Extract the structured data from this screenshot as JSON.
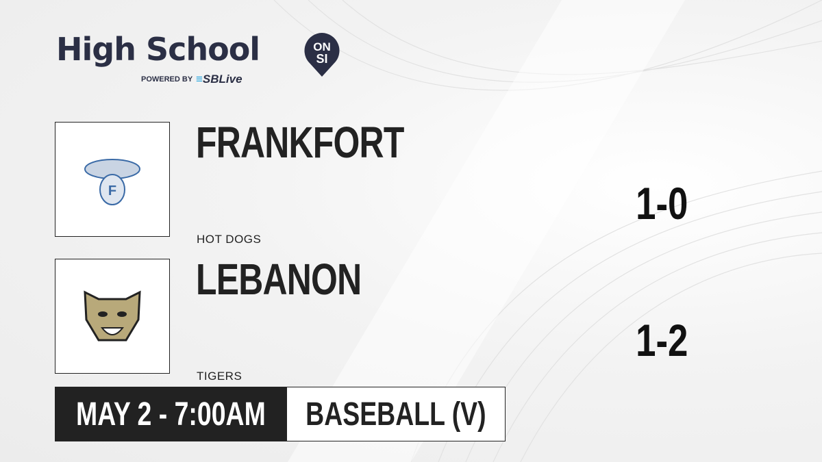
{
  "brand": {
    "title": "High School",
    "badge_top": "ON",
    "badge_bottom": "SI",
    "powered_by": "POWERED BY",
    "partner": "SBLive"
  },
  "teams": [
    {
      "name": "FRANKFORT",
      "mascot": "HOT DOGS",
      "record": "1-0",
      "logo_color": "#3a6aa6"
    },
    {
      "name": "LEBANON",
      "mascot": "TIGERS",
      "record": "1-2",
      "logo_color": "#b8a97a"
    }
  ],
  "game": {
    "datetime": "MAY 2 - 7:00AM",
    "sport": "BASEBALL (V)"
  },
  "colors": {
    "brand_navy": "#2b2f45",
    "sblive_blue": "#2aa8e0",
    "dark": "#222222"
  }
}
